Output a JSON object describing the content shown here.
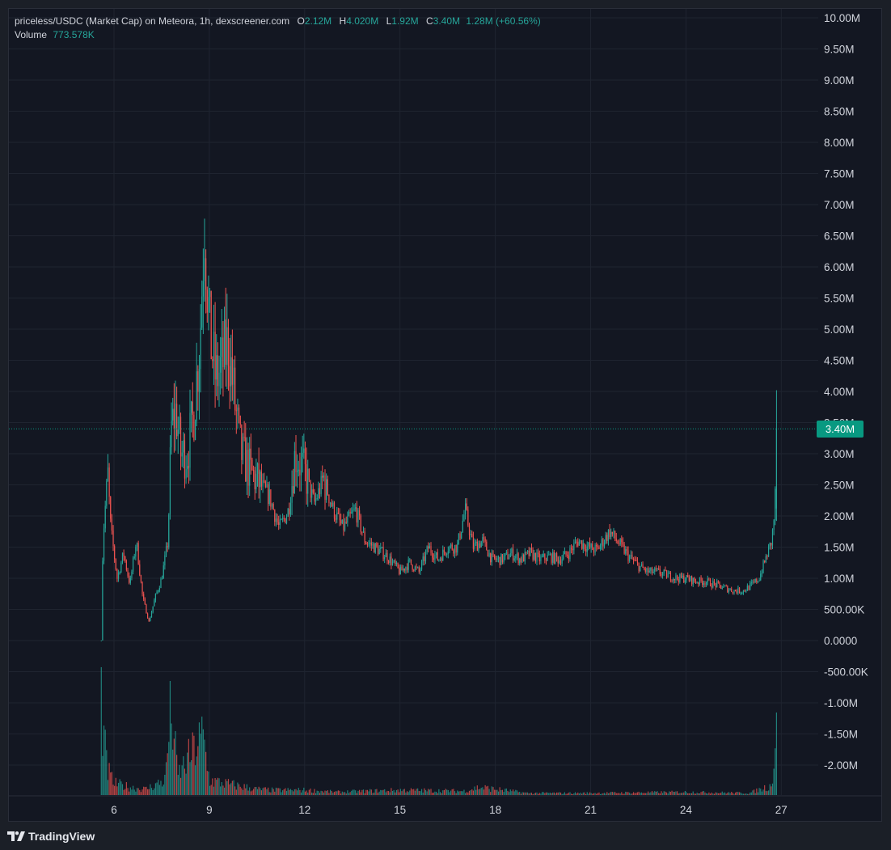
{
  "legend": {
    "pair": "priceless/USDC (Market Cap) on Meteora, 1h, dexscreener.com",
    "o_key": "O",
    "o_val": "2.12M",
    "h_key": "H",
    "h_val": "4.020M",
    "l_key": "L",
    "l_val": "1.92M",
    "c_key": "C",
    "c_val": "3.40M",
    "change": "1.28M (+60.56%)",
    "volume_label": "Volume",
    "volume_val": "773.578K"
  },
  "last_price_label": "3.40M",
  "branding": "TradingView",
  "colors": {
    "up": "#26a69a",
    "down": "#ef5350",
    "background": "#131722",
    "grid": "#1f2430",
    "tag": "#089981"
  },
  "chart_data": {
    "type": "candlestick",
    "y_ticks": [
      "10.00M",
      "9.50M",
      "9.00M",
      "8.50M",
      "8.00M",
      "7.50M",
      "7.00M",
      "6.50M",
      "6.00M",
      "5.50M",
      "5.00M",
      "4.50M",
      "4.00M",
      "3.50M",
      "3.00M",
      "2.50M",
      "2.00M",
      "1.50M",
      "1.00M",
      "500.00K",
      "0.0000",
      "-500.00K",
      "-1.00M",
      "-1.50M",
      "-2.00M"
    ],
    "y_range": [
      -2500000,
      10000000
    ],
    "x_ticks": [
      "6",
      "9",
      "12",
      "15",
      "18",
      "21",
      "24",
      "27"
    ],
    "x_range_days": [
      3.0,
      28.2
    ],
    "last_price": 3400000,
    "grid": true,
    "price_anchors": [
      [
        5.6,
        0.0
      ],
      [
        5.65,
        1.6
      ],
      [
        5.8,
        2.7
      ],
      [
        5.9,
        1.8
      ],
      [
        6.1,
        1.0
      ],
      [
        6.3,
        1.4
      ],
      [
        6.5,
        0.9
      ],
      [
        6.7,
        1.6
      ],
      [
        6.9,
        0.7
      ],
      [
        7.1,
        0.3
      ],
      [
        7.3,
        0.7
      ],
      [
        7.5,
        1.0
      ],
      [
        7.7,
        1.6
      ],
      [
        7.8,
        3.4
      ],
      [
        7.95,
        3.7
      ],
      [
        8.1,
        3.0
      ],
      [
        8.3,
        3.0
      ],
      [
        8.5,
        3.6
      ],
      [
        8.7,
        4.8
      ],
      [
        8.85,
        6.8
      ],
      [
        9.0,
        5.0
      ],
      [
        9.2,
        4.2
      ],
      [
        9.4,
        4.4
      ],
      [
        9.6,
        4.8
      ],
      [
        9.8,
        3.8
      ],
      [
        10.0,
        3.0
      ],
      [
        10.3,
        2.7
      ],
      [
        10.6,
        2.5
      ],
      [
        10.9,
        2.3
      ],
      [
        11.2,
        1.8
      ],
      [
        11.5,
        2.1
      ],
      [
        11.7,
        3.0
      ],
      [
        12.0,
        2.7
      ],
      [
        12.3,
        2.2
      ],
      [
        12.6,
        2.6
      ],
      [
        12.9,
        2.1
      ],
      [
        13.2,
        1.8
      ],
      [
        13.6,
        2.1
      ],
      [
        13.9,
        1.6
      ],
      [
        14.2,
        1.5
      ],
      [
        14.6,
        1.35
      ],
      [
        15.0,
        1.1
      ],
      [
        15.3,
        1.25
      ],
      [
        15.6,
        1.1
      ],
      [
        15.9,
        1.5
      ],
      [
        16.2,
        1.3
      ],
      [
        16.5,
        1.5
      ],
      [
        16.8,
        1.5
      ],
      [
        17.05,
        2.1
      ],
      [
        17.3,
        1.5
      ],
      [
        17.6,
        1.6
      ],
      [
        17.9,
        1.3
      ],
      [
        18.2,
        1.3
      ],
      [
        18.5,
        1.4
      ],
      [
        18.8,
        1.3
      ],
      [
        19.1,
        1.4
      ],
      [
        19.4,
        1.3
      ],
      [
        19.7,
        1.35
      ],
      [
        20.0,
        1.3
      ],
      [
        20.3,
        1.4
      ],
      [
        20.6,
        1.6
      ],
      [
        20.9,
        1.5
      ],
      [
        21.2,
        1.45
      ],
      [
        21.6,
        1.75
      ],
      [
        21.9,
        1.55
      ],
      [
        22.2,
        1.35
      ],
      [
        22.5,
        1.2
      ],
      [
        22.8,
        1.1
      ],
      [
        23.1,
        1.1
      ],
      [
        23.4,
        1.05
      ],
      [
        23.7,
        1.0
      ],
      [
        24.0,
        1.0
      ],
      [
        24.3,
        0.95
      ],
      [
        24.6,
        0.95
      ],
      [
        24.9,
        0.9
      ],
      [
        25.2,
        0.85
      ],
      [
        25.5,
        0.8
      ],
      [
        25.8,
        0.8
      ],
      [
        26.1,
        0.9
      ],
      [
        26.3,
        1.0
      ],
      [
        26.5,
        1.3
      ],
      [
        26.7,
        1.6
      ],
      [
        26.8,
        2.12
      ],
      [
        26.85,
        3.4
      ]
    ],
    "volume_anchors": [
      [
        5.6,
        1.0
      ],
      [
        5.7,
        0.5
      ],
      [
        5.8,
        0.25
      ],
      [
        6.0,
        0.12
      ],
      [
        6.5,
        0.08
      ],
      [
        7.0,
        0.06
      ],
      [
        7.6,
        0.15
      ],
      [
        7.8,
        0.9
      ],
      [
        8.0,
        0.2
      ],
      [
        8.8,
        0.6
      ],
      [
        9.0,
        0.15
      ],
      [
        9.8,
        0.1
      ],
      [
        10.5,
        0.06
      ],
      [
        11.0,
        0.05
      ],
      [
        12.0,
        0.05
      ],
      [
        13.0,
        0.03
      ],
      [
        15.0,
        0.05
      ],
      [
        17.0,
        0.04
      ],
      [
        17.5,
        0.08
      ],
      [
        19.0,
        0.02
      ],
      [
        21.0,
        0.02
      ],
      [
        24.0,
        0.03
      ],
      [
        26.0,
        0.02
      ],
      [
        26.7,
        0.1
      ],
      [
        26.85,
        0.75
      ]
    ]
  }
}
